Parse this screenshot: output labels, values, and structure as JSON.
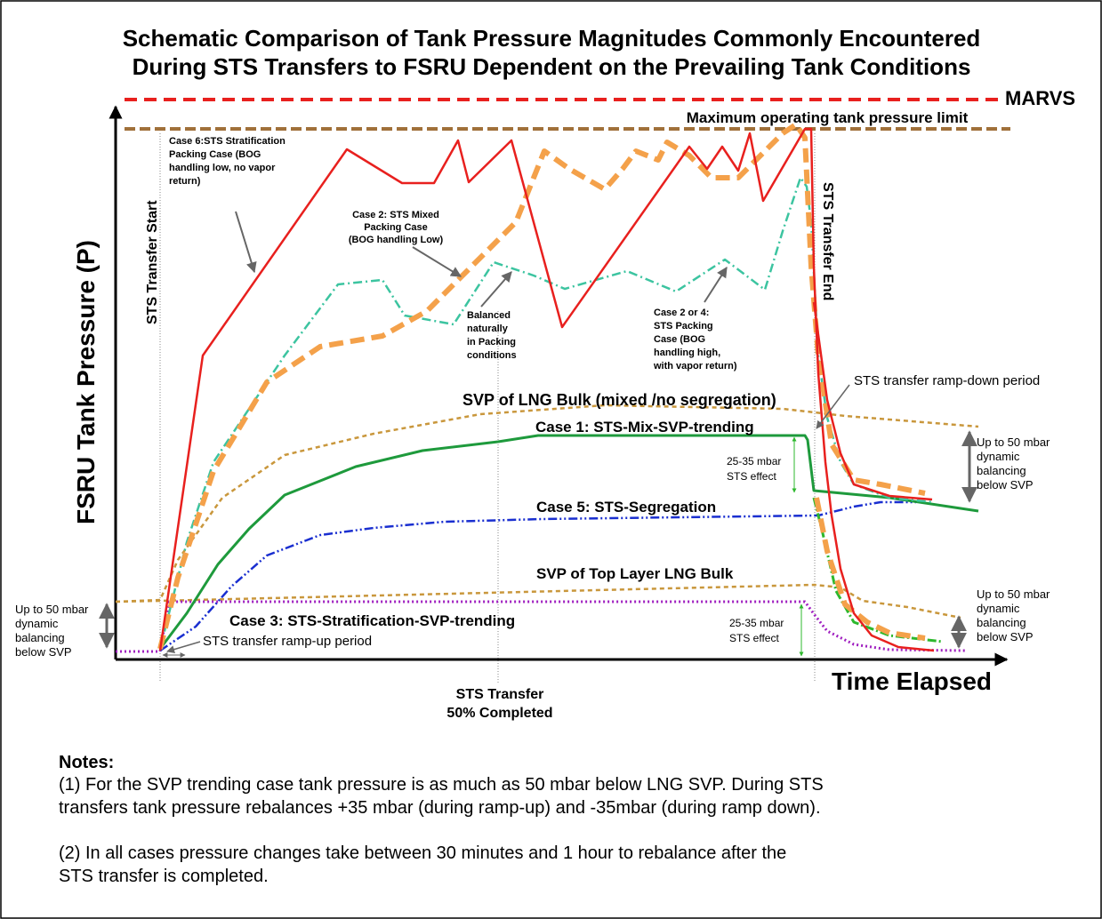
{
  "title": [
    "Schematic Comparison of Tank Pressure Magnitudes Commonly Encountered",
    "During STS Transfers to FSRU Dependent on the Prevailing Tank Conditions"
  ],
  "axes": {
    "y_label": "FSRU Tank Pressure (P)",
    "x_label": "Time Elapsed"
  },
  "limits": {
    "marvs": "MARVS",
    "max_operating": "Maximum operating tank pressure limit"
  },
  "markers": {
    "start": "STS  Transfer Start",
    "end": "STS Transfer End",
    "midpoint": [
      "STS Transfer",
      "50% Completed"
    ]
  },
  "annotations": {
    "case6": [
      "Case 6:STS Stratification",
      "Packing Case (BOG",
      "handling low, no vapor",
      "return)"
    ],
    "case2": [
      "Case 2: STS Mixed",
      "Packing Case",
      "(BOG handling Low)"
    ],
    "balanced": [
      "Balanced",
      "naturally",
      "in Packing",
      "conditions"
    ],
    "case2or4": [
      "Case 2 or 4:",
      "STS Packing",
      "Case (BOG",
      "handling high,",
      "with vapor return)"
    ],
    "svp_bulk": "SVP of LNG Bulk (mixed /no segregation)",
    "ramp_down": "STS transfer ramp-down period",
    "case1": "Case 1: STS-Mix-SVP-trending",
    "sts_effect_upper": [
      "25-35 mbar",
      "STS effect"
    ],
    "balancing_right_upper": [
      "Up to 50 mbar",
      "dynamic",
      "balancing",
      "below SVP"
    ],
    "case5": "Case 5: STS-Segregation",
    "svp_top": "SVP of Top Layer LNG Bulk",
    "balancing_left": [
      "Up to 50 mbar",
      "dynamic",
      "balancing",
      "below SVP"
    ],
    "case3": "Case 3: STS-Stratification-SVP-trending",
    "ramp_up": "STS transfer ramp-up period",
    "sts_effect_lower": [
      "25-35 mbar",
      "STS effect"
    ],
    "balancing_right_lower": [
      "Up to 50 mbar",
      "dynamic",
      "balancing",
      "below SVP"
    ]
  },
  "notes": {
    "heading": "Notes:",
    "items": [
      [
        "(1) For the SVP trending case tank pressure is as much as 50 mbar below LNG SVP. During STS",
        "transfers tank pressure rebalances +35 mbar (during ramp-up) and -35mbar (during ramp down)."
      ],
      [
        "(2) In all cases pressure changes take between 30 minutes and 1 hour to rebalance after the",
        "STS transfer is completed."
      ]
    ]
  }
}
